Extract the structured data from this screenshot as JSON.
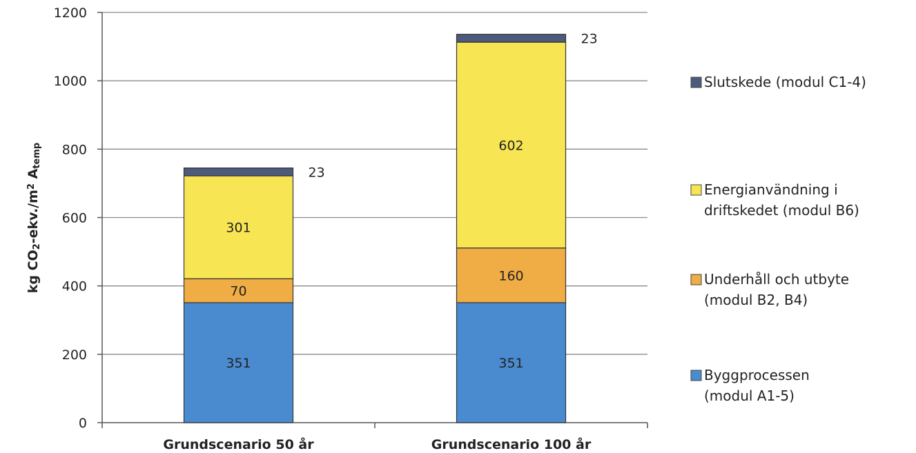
{
  "chart_data": {
    "type": "bar",
    "stacked": true,
    "categories": [
      "Grundscenario 50 år",
      "Grundscenario 100 år"
    ],
    "series": [
      {
        "name": "Byggprocessen (modul A1-5)",
        "values": [
          351,
          351
        ],
        "color": "#4a8bd0"
      },
      {
        "name": "Underhåll och utbyte (modul B2, B4)",
        "values": [
          70,
          160
        ],
        "color": "#f0ac45"
      },
      {
        "name": "Energianvändning i driftskedet (modul B6)",
        "values": [
          301,
          602
        ],
        "color": "#f8e553"
      },
      {
        "name": "Slutskede (modul C1-4)",
        "values": [
          23,
          23
        ],
        "color": "#4c5a7c"
      }
    ],
    "legend_order": [
      3,
      2,
      1,
      0
    ],
    "legend_lines": [
      [
        "Slutskede (modul C1-4)"
      ],
      [
        "Energianvändning i",
        "driftskedet (modul B6)"
      ],
      [
        "Underhåll och utbyte",
        "(modul B2, B4)"
      ],
      [
        "Byggprocessen",
        "(modul A1-5)"
      ]
    ],
    "ylabel_parts": [
      "kg CO",
      "2",
      "-ekv./m",
      "2",
      " A",
      "temp"
    ],
    "ylim": [
      0,
      1200
    ],
    "yticks": [
      0,
      200,
      400,
      600,
      800,
      1000,
      1200
    ],
    "grid": true,
    "legend_position": "right"
  }
}
